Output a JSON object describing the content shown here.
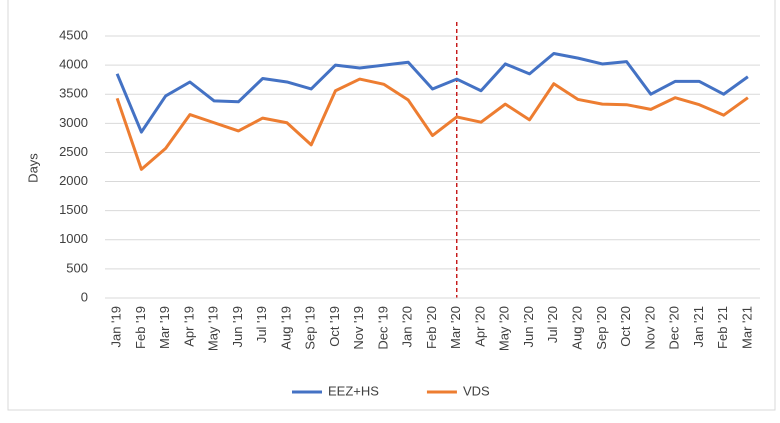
{
  "chart_data": {
    "type": "line",
    "y_label": "Days",
    "categories": [
      "Jan '19",
      "Feb '19",
      "Mar '19",
      "Apr '19",
      "May '19",
      "Jun '19",
      "Jul '19",
      "Aug '19",
      "Sep '19",
      "Oct '19",
      "Nov '19",
      "Dec '19",
      "Jan '20",
      "Feb '20",
      "Mar '20",
      "Apr '20",
      "May '20",
      "Jun '20",
      "Jul '20",
      "Aug '20",
      "Sep '20",
      "Oct '20",
      "Nov '20",
      "Dec '20",
      "Jan '21",
      "Feb '21",
      "Mar '21"
    ],
    "series": [
      {
        "name": "EEZ+HS",
        "color": "#4472c4",
        "values": [
          3850,
          2850,
          3470,
          3710,
          3385,
          3370,
          3770,
          3710,
          3590,
          4000,
          3950,
          4000,
          4050,
          3590,
          3760,
          3560,
          4020,
          3850,
          4200,
          4120,
          4020,
          4060,
          3500,
          3720,
          3720,
          3500,
          3800
        ]
      },
      {
        "name": "VDS",
        "color": "#ed7d31",
        "values": [
          3430,
          2210,
          2570,
          3150,
          3010,
          2870,
          3090,
          3010,
          2630,
          3560,
          3760,
          3670,
          3400,
          2790,
          3110,
          3020,
          3330,
          3060,
          3680,
          3410,
          3330,
          3320,
          3240,
          3440,
          3320,
          3140,
          3440
        ]
      }
    ],
    "ylim": [
      0,
      4500
    ],
    "yticks": [
      0,
      500,
      1000,
      1500,
      2000,
      2500,
      3000,
      3500,
      4000,
      4500
    ],
    "grid": true,
    "legend": "bottom",
    "reference_line": {
      "x": "Mar '20",
      "color": "#c00000",
      "style": "dashed"
    }
  }
}
